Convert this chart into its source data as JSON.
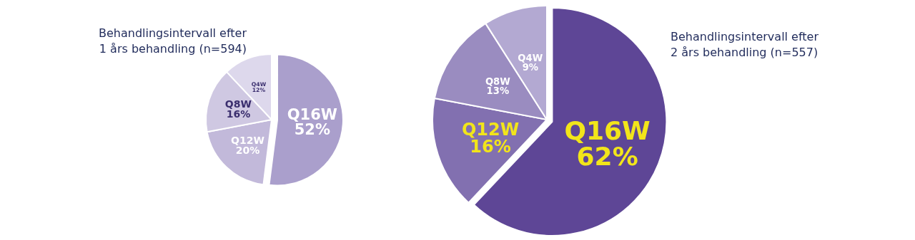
{
  "chart_data": [
    {
      "type": "pie",
      "title": "Behandlingsintervall efter\n1 års behandling (n=594)",
      "categories": [
        "Q16W",
        "Q12W",
        "Q8W",
        "Q4W"
      ],
      "values": [
        52,
        20,
        16,
        12
      ],
      "value_labels": [
        "52%",
        "20%",
        "16%",
        "12%"
      ],
      "colors": [
        "#aa9fcc",
        "#c2b9da",
        "#cfc8e2",
        "#ddd8ec"
      ],
      "legend": false
    },
    {
      "type": "pie",
      "title": "Behandlingsintervall efter\n2 års behandling (n=557)",
      "categories": [
        "Q16W",
        "Q12W",
        "Q8W",
        "Q4W"
      ],
      "values": [
        62,
        16,
        13,
        9
      ],
      "value_labels": [
        "62%",
        "16%",
        "13%",
        "9%"
      ],
      "colors": [
        "#5e4696",
        "#8270b0",
        "#9a8cc0",
        "#b3a9d2"
      ],
      "legend": false
    }
  ]
}
